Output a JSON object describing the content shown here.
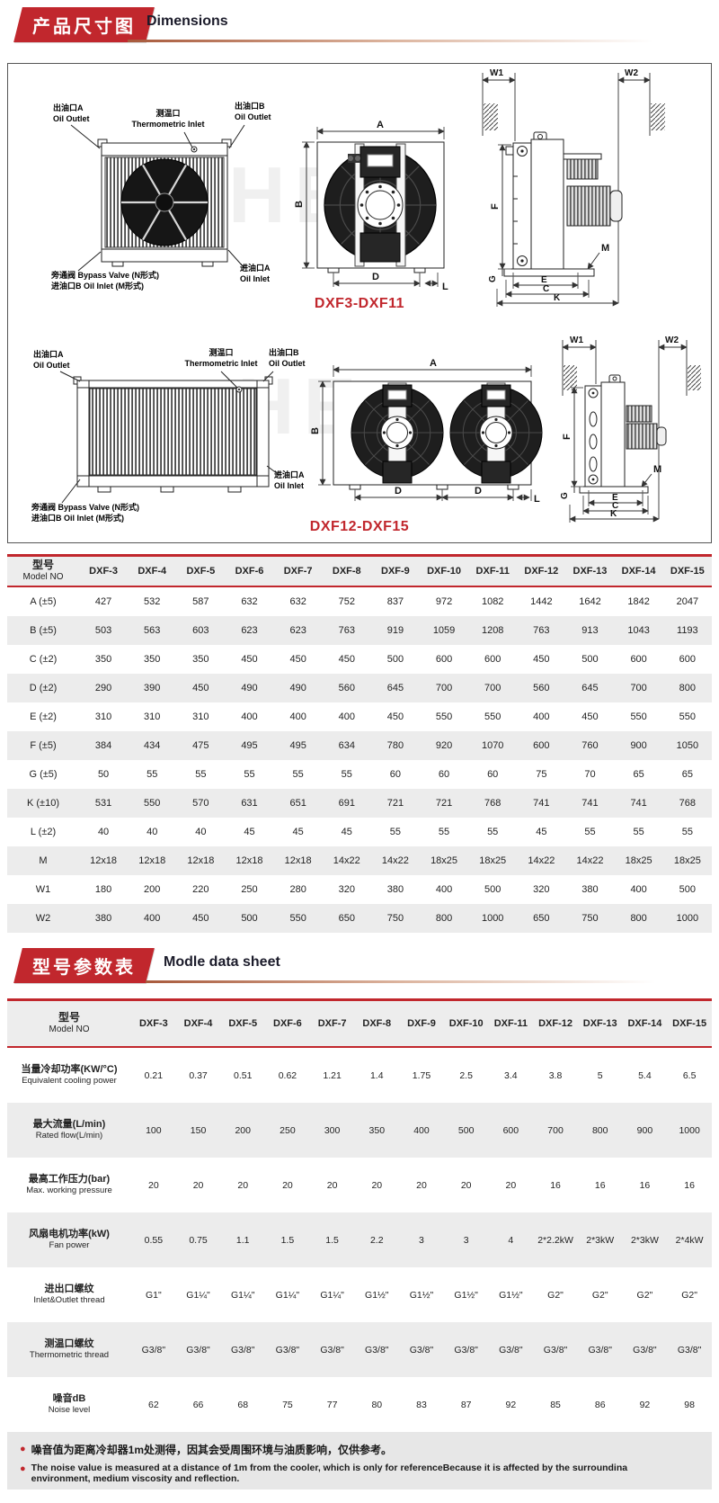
{
  "header1": {
    "zh": "产品尺寸图",
    "en": "Dimensions"
  },
  "header2": {
    "zh": "型号参数表",
    "en": "Modle data sheet"
  },
  "diagram": {
    "caption1": "DXF3-DXF11",
    "caption2": "DXF12-DXF15",
    "watermark": "HE",
    "labels": {
      "oil_outlet_a_zh": "出油口A",
      "oil_outlet_a_en": "Oil Outlet",
      "thermometric_zh": "测温口",
      "thermometric_en": "Thermometric Inlet",
      "oil_outlet_b_zh": "出油口B",
      "oil_outlet_b_en": "Oil Outlet",
      "oil_inlet_a_zh": "进油口A",
      "oil_inlet_a_en": "Oil Inlet",
      "bypass_line1": "旁通阀  Bypass Valve (N形式)",
      "bypass_line2": "进油口B  Oil Inlet (M形式)"
    },
    "letters": {
      "A": "A",
      "B": "B",
      "C": "C",
      "D": "D",
      "E": "E",
      "F": "F",
      "G": "G",
      "K": "K",
      "L": "L",
      "M": "M",
      "W1": "W1",
      "W2": "W2"
    }
  },
  "dim_table": {
    "col0_zh": "型号",
    "col0_en": "Model NO",
    "models": [
      "DXF-3",
      "DXF-4",
      "DXF-5",
      "DXF-6",
      "DXF-7",
      "DXF-8",
      "DXF-9",
      "DXF-10",
      "DXF-11",
      "DXF-12",
      "DXF-13",
      "DXF-14",
      "DXF-15"
    ],
    "rows": [
      {
        "label": "A (±5)",
        "values": [
          "427",
          "532",
          "587",
          "632",
          "632",
          "752",
          "837",
          "972",
          "1082",
          "1442",
          "1642",
          "1842",
          "2047"
        ]
      },
      {
        "label": "B (±5)",
        "values": [
          "503",
          "563",
          "603",
          "623",
          "623",
          "763",
          "919",
          "1059",
          "1208",
          "763",
          "913",
          "1043",
          "1193"
        ]
      },
      {
        "label": "C (±2)",
        "values": [
          "350",
          "350",
          "350",
          "450",
          "450",
          "450",
          "500",
          "600",
          "600",
          "450",
          "500",
          "600",
          "600"
        ]
      },
      {
        "label": "D (±2)",
        "values": [
          "290",
          "390",
          "450",
          "490",
          "490",
          "560",
          "645",
          "700",
          "700",
          "560",
          "645",
          "700",
          "800"
        ]
      },
      {
        "label": "E (±2)",
        "values": [
          "310",
          "310",
          "310",
          "400",
          "400",
          "400",
          "450",
          "550",
          "550",
          "400",
          "450",
          "550",
          "550"
        ]
      },
      {
        "label": "F (±5)",
        "values": [
          "384",
          "434",
          "475",
          "495",
          "495",
          "634",
          "780",
          "920",
          "1070",
          "600",
          "760",
          "900",
          "1050"
        ]
      },
      {
        "label": "G (±5)",
        "values": [
          "50",
          "55",
          "55",
          "55",
          "55",
          "55",
          "60",
          "60",
          "60",
          "75",
          "70",
          "65",
          "65"
        ]
      },
      {
        "label": "K (±10)",
        "values": [
          "531",
          "550",
          "570",
          "631",
          "651",
          "691",
          "721",
          "721",
          "768",
          "741",
          "741",
          "741",
          "768"
        ]
      },
      {
        "label": "L (±2)",
        "values": [
          "40",
          "40",
          "40",
          "45",
          "45",
          "45",
          "55",
          "55",
          "55",
          "45",
          "55",
          "55",
          "55"
        ]
      },
      {
        "label": "M",
        "values": [
          "12x18",
          "12x18",
          "12x18",
          "12x18",
          "12x18",
          "14x22",
          "14x22",
          "18x25",
          "18x25",
          "14x22",
          "14x22",
          "18x25",
          "18x25"
        ]
      },
      {
        "label": "W1",
        "values": [
          "180",
          "200",
          "220",
          "250",
          "280",
          "320",
          "380",
          "400",
          "500",
          "320",
          "380",
          "400",
          "500"
        ]
      },
      {
        "label": "W2",
        "values": [
          "380",
          "400",
          "450",
          "500",
          "550",
          "650",
          "750",
          "800",
          "1000",
          "650",
          "750",
          "800",
          "1000"
        ]
      }
    ]
  },
  "data_table": {
    "col0_zh": "型号",
    "col0_en": "Model NO",
    "models": [
      "DXF-3",
      "DXF-4",
      "DXF-5",
      "DXF-6",
      "DXF-7",
      "DXF-8",
      "DXF-9",
      "DXF-10",
      "DXF-11",
      "DXF-12",
      "DXF-13",
      "DXF-14",
      "DXF-15"
    ],
    "rows": [
      {
        "zh": "当量冷却功率(KW/°C)",
        "en": "Equivalent cooling power",
        "values": [
          "0.21",
          "0.37",
          "0.51",
          "0.62",
          "1.21",
          "1.4",
          "1.75",
          "2.5",
          "3.4",
          "3.8",
          "5",
          "5.4",
          "6.5"
        ]
      },
      {
        "zh": "最大流量(L/min)",
        "en": "Rated flow(L/min)",
        "values": [
          "100",
          "150",
          "200",
          "250",
          "300",
          "350",
          "400",
          "500",
          "600",
          "700",
          "800",
          "900",
          "1000"
        ]
      },
      {
        "zh": "最高工作压力(bar)",
        "en": "Max. working pressure",
        "values": [
          "20",
          "20",
          "20",
          "20",
          "20",
          "20",
          "20",
          "20",
          "20",
          "16",
          "16",
          "16",
          "16"
        ]
      },
      {
        "zh": "风扇电机功率(kW)",
        "en": "Fan power",
        "values": [
          "0.55",
          "0.75",
          "1.1",
          "1.5",
          "1.5",
          "2.2",
          "3",
          "3",
          "4",
          "2*2.2kW",
          "2*3kW",
          "2*3kW",
          "2*4kW"
        ]
      },
      {
        "zh": "进出口螺纹",
        "en": "Inlet&Outlet thread",
        "values": [
          "G1\"",
          "G1¼\"",
          "G1¼\"",
          "G1¼\"",
          "G1¼\"",
          "G1½\"",
          "G1½\"",
          "G1½\"",
          "G1½\"",
          "G2\"",
          "G2\"",
          "G2\"",
          "G2\""
        ]
      },
      {
        "zh": "测温口螺纹",
        "en": "Thermometric thread",
        "values": [
          "G3/8\"",
          "G3/8\"",
          "G3/8\"",
          "G3/8\"",
          "G3/8\"",
          "G3/8\"",
          "G3/8\"",
          "G3/8\"",
          "G3/8\"",
          "G3/8\"",
          "G3/8\"",
          "G3/8\"",
          "G3/8\""
        ]
      },
      {
        "zh": "噪音dB",
        "en": "Noise level",
        "values": [
          "62",
          "66",
          "68",
          "75",
          "77",
          "80",
          "83",
          "87",
          "92",
          "85",
          "86",
          "92",
          "98"
        ]
      }
    ]
  },
  "notes": {
    "zh": "噪音值为距离冷却器1m处测得，因其会受周围环境与油质影响，仅供参考。",
    "en": "The noise value is measured at a distance of 1m from the cooler, which is only for referenceBecause it is affected by the surroundina environment, medium viscosity and reflection."
  },
  "colors": {
    "accent_red": "#c1272d",
    "alt_row": "#ececec",
    "note_bg": "#e7e7e7"
  }
}
